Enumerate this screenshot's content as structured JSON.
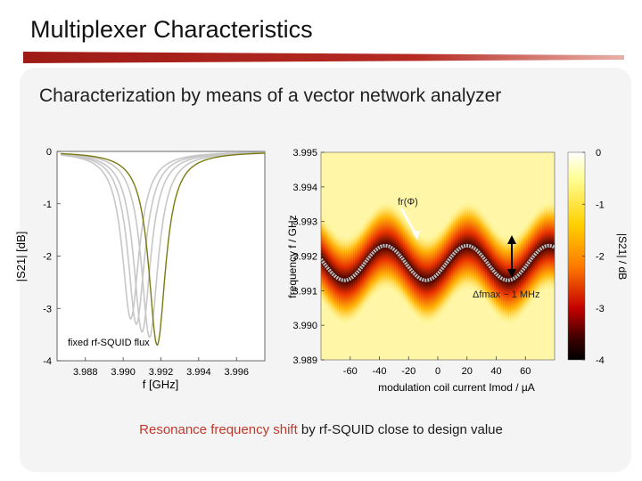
{
  "slide": {
    "title": "Multiplexer Characteristics",
    "subtitle": "Characterization by means of a vector network analyzer",
    "caption_highlight": "Resonance frequency shift",
    "caption_rest": " by rf-SQUID close to design value",
    "accent_color": "#b52a22"
  },
  "chart_data": [
    {
      "type": "line",
      "xlabel": "f [GHz]",
      "ylabel": "|S21| [dB]",
      "xlim": [
        3.9865,
        3.9975
      ],
      "ylim": [
        -4,
        0
      ],
      "x_ticks": [
        "3.988",
        "3.990",
        "3.992",
        "3.994",
        "3.996"
      ],
      "y_ticks": [
        "0",
        "-1",
        "-2",
        "-3",
        "-4"
      ],
      "annotation": "fixed rf-SQUID flux",
      "highlight_color": "#7a7a10",
      "series": [
        {
          "center": 3.9904,
          "min_db": -3.2
        },
        {
          "center": 3.9907,
          "min_db": -3.3
        },
        {
          "center": 3.991,
          "min_db": -3.45
        },
        {
          "center": 3.9914,
          "min_db": -3.55
        },
        {
          "center": 3.9918,
          "min_db": -3.7
        }
      ]
    },
    {
      "type": "heatmap",
      "xlabel": "modulation coil current Imod / µA",
      "ylabel": "frequency f / GHz",
      "colorbar_label": "|S21| / dB",
      "xlim": [
        -80,
        80
      ],
      "ylim": [
        3.989,
        3.995
      ],
      "x_ticks": [
        "-60",
        "-40",
        "-20",
        "0",
        "20",
        "40",
        "60"
      ],
      "y_ticks": [
        "3.995",
        "3.994",
        "3.993",
        "3.992",
        "3.991",
        "3.990",
        "3.989"
      ],
      "colorbar_ticks": [
        "0",
        "-1",
        "-2",
        "-3",
        "-4"
      ],
      "resonance_center": 3.9918,
      "resonance_amplitude": 0.0005,
      "period_ua": 56,
      "annotation_fr": "fr(Φ)",
      "annotation_df": "Δfmax ~ 1 MHz"
    }
  ]
}
